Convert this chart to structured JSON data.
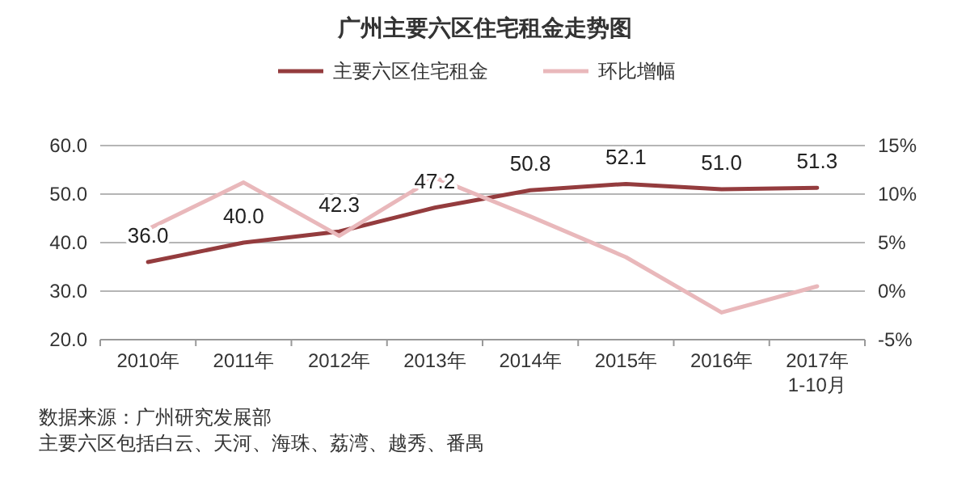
{
  "chart_data": {
    "type": "line",
    "title": "广州主要六区住宅租金走势图",
    "categories": [
      "2010年",
      "2011年",
      "2012年",
      "2013年",
      "2014年",
      "2015年",
      "2016年",
      "2017年\n1-10月"
    ],
    "series": [
      {
        "name": "主要六区住宅租金",
        "color": "#943c3e",
        "values": [
          36.0,
          40.0,
          42.3,
          47.2,
          50.8,
          52.1,
          51.0,
          51.3
        ],
        "value_labels": [
          "36.0",
          "40.0",
          "42.3",
          "47.2",
          "50.8",
          "52.1",
          "51.0",
          "51.3"
        ]
      },
      {
        "name": "环比增幅",
        "color": "#e9b8bb",
        "axis": "y2",
        "values": [
          6.4,
          11.2,
          5.7,
          11.7,
          7.7,
          3.5,
          -2.2,
          0.5
        ]
      }
    ],
    "ylim": [
      20,
      60
    ],
    "yticks": [
      {
        "value": 20,
        "label": "20.0"
      },
      {
        "value": 30,
        "label": "30.0"
      },
      {
        "value": 40,
        "label": "40.0"
      },
      {
        "value": 50,
        "label": "50.0"
      },
      {
        "value": 60,
        "label": "60.0"
      }
    ],
    "y2lim": [
      -5,
      15
    ],
    "y2ticks": [
      {
        "value": -5,
        "label": "-5%"
      },
      {
        "value": 0,
        "label": "0%"
      },
      {
        "value": 5,
        "label": "5%"
      },
      {
        "value": 10,
        "label": "10%"
      },
      {
        "value": 15,
        "label": "15%"
      }
    ],
    "grid": "y",
    "legend": "top",
    "marker": "none",
    "line_style": "solid",
    "annotations": [
      "数据来源：广州研究发展部",
      "主要六区包括白云、天河、海珠、荔湾、越秀、番禺"
    ]
  }
}
